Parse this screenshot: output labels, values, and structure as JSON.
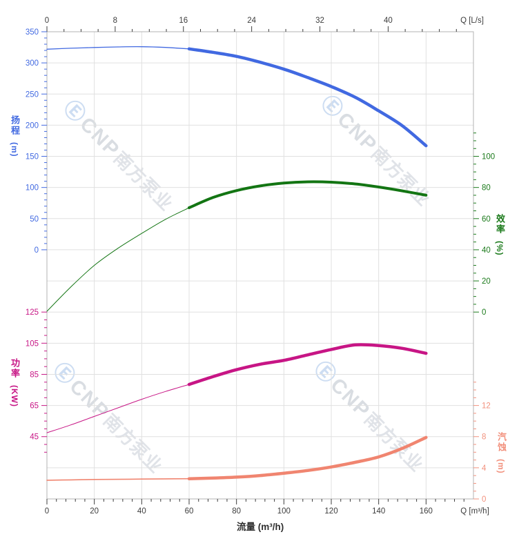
{
  "axes": {
    "top": {
      "label": "Q [L/s]",
      "majors": [
        0,
        8,
        16,
        24,
        32,
        40
      ],
      "minor_step": 2,
      "range": [
        0,
        48
      ],
      "color": "#3c3c3c"
    },
    "bottom": {
      "label": "Q [m³/h]",
      "title": "流量 (m³/h)",
      "majors": [
        0,
        20,
        40,
        60,
        80,
        100,
        120,
        140,
        160
      ],
      "minor_step": 4,
      "range": [
        0,
        176
      ],
      "color": "#3c3c3c"
    },
    "head": {
      "title": "扬程",
      "unit": "(m)",
      "majors": [
        350,
        300,
        250,
        200,
        150,
        100,
        50,
        0
      ],
      "minor_step": 10,
      "range": [
        0,
        350
      ],
      "color": "#4169E1"
    },
    "efficiency": {
      "title": "效率",
      "unit": "(%)",
      "majors": [
        100,
        80,
        60,
        40,
        20,
        0
      ],
      "minor_step": 5,
      "range": [
        0,
        115
      ],
      "color": "#1B7A1B"
    },
    "power": {
      "title": "功率",
      "unit": "(KW)",
      "majors": [
        125,
        105,
        85,
        65,
        45
      ],
      "minor_step": 5,
      "range": [
        35,
        125
      ],
      "color": "#C71585"
    },
    "npsh": {
      "title": "汽蚀",
      "unit": "(m)",
      "majors": [
        12,
        8,
        4,
        0
      ],
      "minor_step": 1,
      "range": [
        0,
        15
      ],
      "color": "#F2917D"
    }
  },
  "chart_data": {
    "type": "line",
    "x_label": "流量 (m³/h)",
    "x_range_m3h": [
      0,
      180
    ],
    "x_range_ls": [
      0,
      50
    ],
    "grid": true,
    "series": [
      {
        "name": "head",
        "axis": "head",
        "ylabel": "扬程 (m)",
        "color": "#4169E1",
        "bold_from": 60,
        "x": [
          0,
          10,
          20,
          30,
          40,
          50,
          60,
          70,
          80,
          90,
          100,
          110,
          120,
          130,
          140,
          150,
          160
        ],
        "y": [
          322,
          323.5,
          324.7,
          325.6,
          326,
          324.8,
          322.5,
          317,
          310.5,
          301,
          290,
          276.5,
          262,
          245,
          223,
          199,
          167
        ]
      },
      {
        "name": "efficiency",
        "axis": "efficiency",
        "ylabel": "效率 (%)",
        "color": "#137513",
        "bold_from": 60,
        "x": [
          0,
          10,
          20,
          30,
          40,
          50,
          60,
          70,
          80,
          90,
          100,
          110,
          120,
          130,
          140,
          150,
          160
        ],
        "y": [
          0.5,
          16,
          30,
          41,
          50.5,
          59.5,
          67,
          73.5,
          78,
          81,
          82.8,
          83.6,
          83.4,
          82.3,
          80.3,
          77.8,
          75
        ]
      },
      {
        "name": "power",
        "axis": "power",
        "ylabel": "功率 (KW)",
        "color": "#C71585",
        "bold_from": 60,
        "x": [
          0,
          10,
          20,
          30,
          40,
          50,
          60,
          70,
          80,
          90,
          100,
          110,
          120,
          130,
          140,
          150,
          160
        ],
        "y": [
          47.5,
          52.5,
          58,
          63.5,
          69,
          74,
          78.5,
          83.5,
          88,
          91.5,
          94,
          97.5,
          101,
          103.9,
          103.5,
          101.7,
          98.5
        ]
      },
      {
        "name": "npsh",
        "axis": "npsh",
        "ylabel": "汽蚀 (m)",
        "color": "#F08570",
        "bold_from": 60,
        "x": [
          0,
          10,
          20,
          30,
          40,
          50,
          60,
          70,
          80,
          90,
          100,
          110,
          120,
          130,
          140,
          150,
          160
        ],
        "y": [
          2.4,
          2.45,
          2.5,
          2.52,
          2.55,
          2.58,
          2.6,
          2.68,
          2.8,
          3.0,
          3.3,
          3.65,
          4.1,
          4.7,
          5.4,
          6.5,
          7.9
        ]
      }
    ]
  },
  "watermark": {
    "logo": "Ⓔ",
    "brand": "CNP",
    "company": "南方泵业"
  }
}
